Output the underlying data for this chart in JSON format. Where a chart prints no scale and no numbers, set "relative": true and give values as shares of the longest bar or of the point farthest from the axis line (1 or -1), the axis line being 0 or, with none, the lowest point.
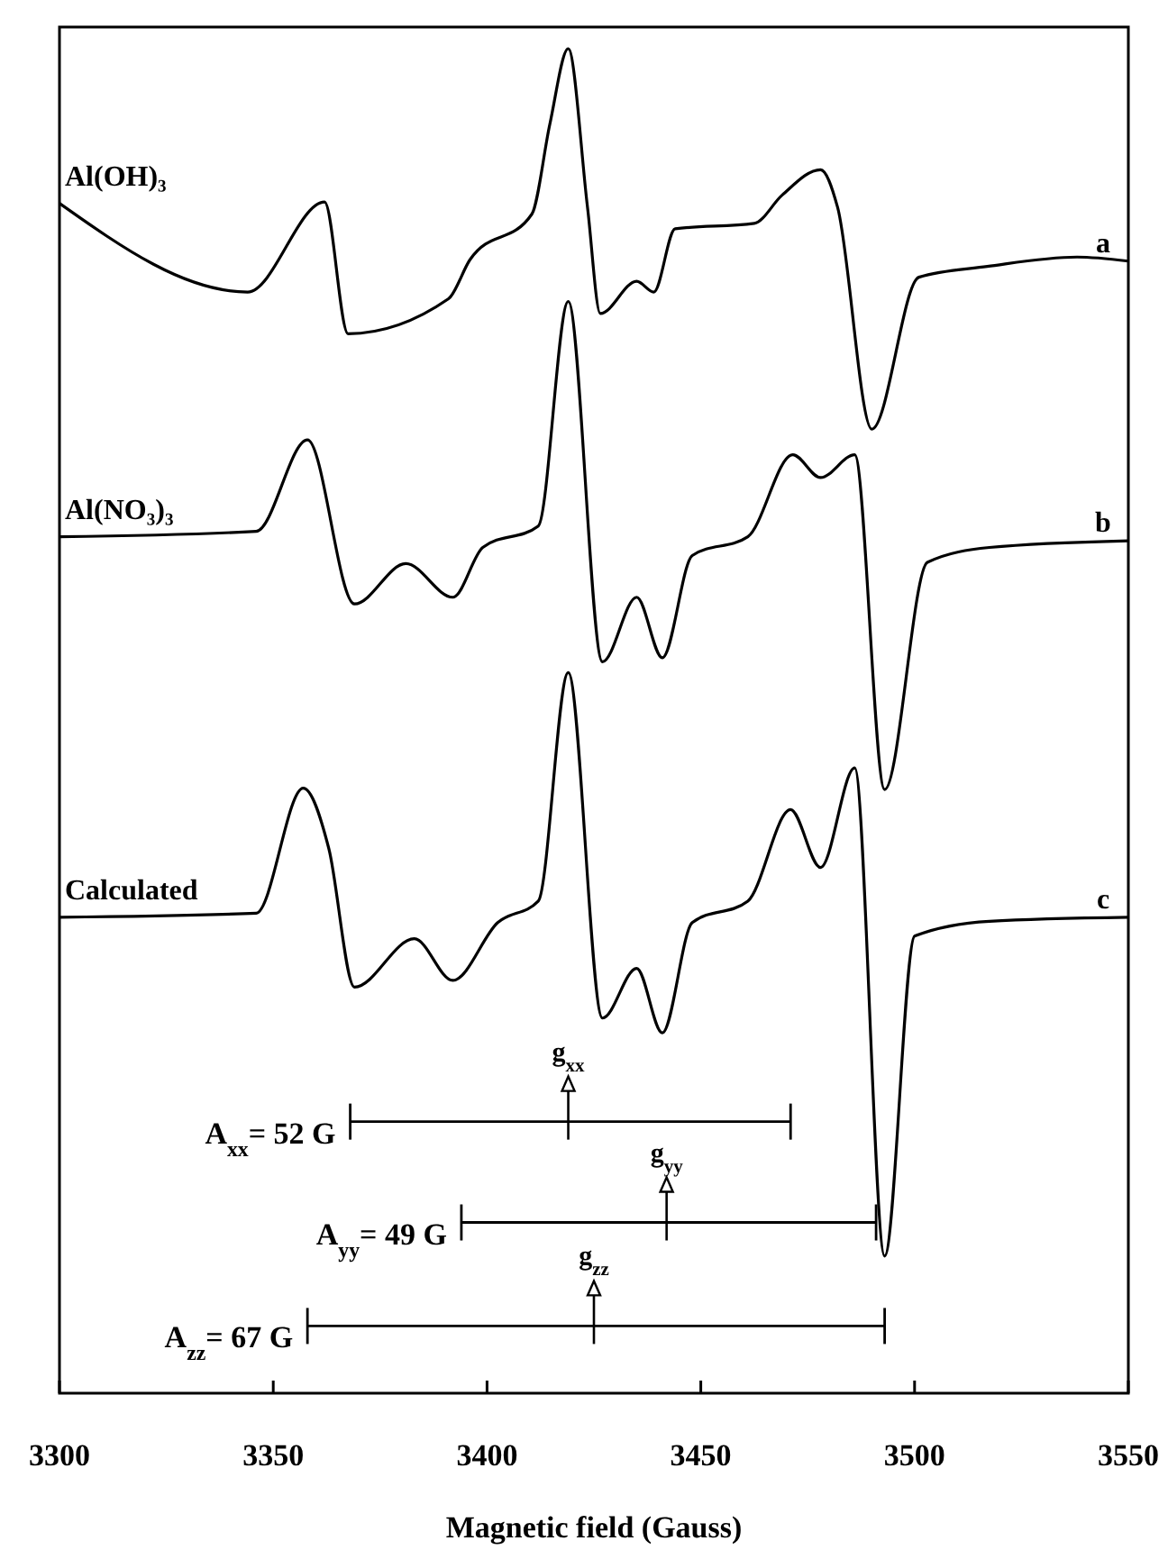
{
  "chart_data": {
    "type": "line",
    "relative": true,
    "xlabel": "Magnetic field (Gauss)",
    "xlim": [
      3300,
      3550
    ],
    "xticks": [
      3300,
      3350,
      3400,
      3450,
      3500,
      3550
    ],
    "tick_labels": "x",
    "grid": false,
    "marker": "none",
    "line_style": "solid",
    "series": [
      {
        "name": "Al(OH)₃",
        "color": "#000000",
        "x": [
          3300,
          3344,
          3362,
          3367.5,
          3391,
          3396,
          3410.5,
          3414.7,
          3419,
          3423.5,
          3426.5,
          3435,
          3439,
          3444,
          3462.5,
          3469,
          3478,
          3482,
          3490,
          3501,
          3517,
          3538,
          3550
        ],
        "values": [
          0.885,
          0.819,
          0.886,
          0.788,
          0.814,
          0.843,
          0.877,
          0.944,
          1.0,
          0.882,
          0.803,
          0.827,
          0.819,
          0.866,
          0.87,
          0.891,
          0.91,
          0.882,
          0.717,
          0.83,
          0.838,
          0.845,
          0.842
        ]
      },
      {
        "name": "Al(NO₃)₃",
        "color": "#000000",
        "x": [
          3300,
          3346,
          3358,
          3369,
          3381,
          3392,
          3399,
          3412,
          3419,
          3427,
          3435,
          3441,
          3448,
          3461,
          3471.5,
          3478,
          3486,
          3493,
          3503,
          3517.5,
          3550
        ],
        "values": [
          0.637,
          0.641,
          0.709,
          0.587,
          0.617,
          0.592,
          0.629,
          0.645,
          0.812,
          0.544,
          0.592,
          0.547,
          0.623,
          0.637,
          0.698,
          0.681,
          0.698,
          0.449,
          0.618,
          0.629,
          0.634
        ]
      },
      {
        "name": "Calculated",
        "color": "#000000",
        "x": [
          3300,
          3346,
          3357,
          3363,
          3369,
          3383,
          3392,
          3402.5,
          3412,
          3419,
          3427,
          3435,
          3441,
          3448,
          3461,
          3471,
          3478,
          3486,
          3493,
          3500,
          3517.5,
          3550
        ],
        "values": [
          0.354,
          0.357,
          0.45,
          0.405,
          0.302,
          0.338,
          0.307,
          0.35,
          0.366,
          0.536,
          0.279,
          0.316,
          0.268,
          0.35,
          0.366,
          0.434,
          0.391,
          0.465,
          0.102,
          0.34,
          0.351,
          0.354
        ]
      },
      {
        "color": "#000000",
        "x": [
          3368,
          3471
        ],
        "values": [
          0.202,
          0.202
        ]
      },
      {
        "color": "#000000",
        "x": [
          3394,
          3491
        ],
        "values": [
          0.127,
          0.127
        ]
      },
      {
        "color": "#000000",
        "x": [
          3358,
          3493
        ],
        "values": [
          0.05,
          0.05
        ]
      }
    ],
    "annotations": [
      "a",
      "b",
      "c",
      {
        "text": "A$_{xx}$= 52 G",
        "x": 3368,
        "y": 0.202
      },
      {
        "text": "g$_{xx}$",
        "x": 3419,
        "y": 0.202
      },
      {
        "text": "A$_{yy}$= 49 G",
        "x": 3394,
        "y": 0.127
      },
      {
        "text": "g$_{yy}$",
        "x": 3442,
        "y": 0.127
      },
      {
        "text": "A$_{zz}$= 67 G",
        "x": 3358,
        "y": 0.05
      },
      {
        "text": "g$_{zz}$",
        "x": 3425,
        "y": 0.05
      }
    ]
  }
}
